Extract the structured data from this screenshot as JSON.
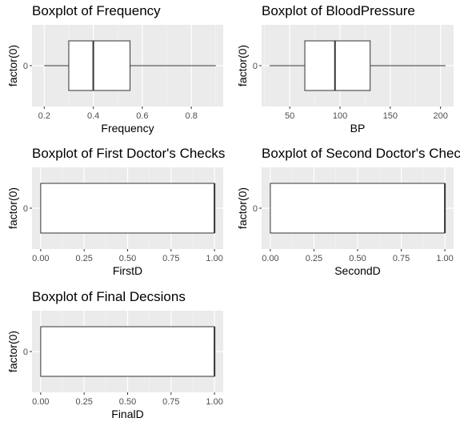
{
  "chart_data": [
    {
      "type": "boxplot",
      "title": "Boxplot of Frequency",
      "xlabel": "Frequency",
      "ylabel": "factor(0)",
      "category": "0",
      "xlim": [
        0.15,
        0.93
      ],
      "xticks": [
        0.2,
        0.4,
        0.6,
        0.8
      ],
      "xtick_labels": [
        "0.2",
        "0.4",
        "0.6",
        "0.8"
      ],
      "box": {
        "min": 0.2,
        "q1": 0.3,
        "median": 0.4,
        "q3": 0.55,
        "max": 0.9
      }
    },
    {
      "type": "boxplot",
      "title": "Boxplot of BloodPressure",
      "xlabel": "BP",
      "ylabel": "factor(0)",
      "category": "0",
      "xlim": [
        22,
        213
      ],
      "xticks": [
        50,
        100,
        150,
        200
      ],
      "xtick_labels": [
        "50",
        "100",
        "150",
        "200"
      ],
      "box": {
        "min": 30,
        "q1": 65,
        "median": 95,
        "q3": 130,
        "max": 205
      }
    },
    {
      "type": "boxplot",
      "title": "Boxplot of First Doctor's Checks",
      "xlabel": "FirstD",
      "ylabel": "factor(0)",
      "category": "0",
      "xlim": [
        -0.05,
        1.05
      ],
      "xticks": [
        0,
        0.25,
        0.5,
        0.75,
        1
      ],
      "xtick_labels": [
        "0.00",
        "0.25",
        "0.50",
        "0.75",
        "1.00"
      ],
      "box": {
        "min": 0,
        "q1": 0,
        "median": 1,
        "q3": 1,
        "max": 1
      }
    },
    {
      "type": "boxplot",
      "title": "Boxplot of Second Doctor's Checks",
      "xlabel": "SecondD",
      "ylabel": "factor(0)",
      "category": "0",
      "xlim": [
        -0.05,
        1.05
      ],
      "xticks": [
        0,
        0.25,
        0.5,
        0.75,
        1
      ],
      "xtick_labels": [
        "0.00",
        "0.25",
        "0.50",
        "0.75",
        "1.00"
      ],
      "box": {
        "min": 0,
        "q1": 0,
        "median": 1,
        "q3": 1,
        "max": 1
      }
    },
    {
      "type": "boxplot",
      "title": "Boxplot of Final Decsions",
      "xlabel": "FinalD",
      "ylabel": "factor(0)",
      "category": "0",
      "xlim": [
        -0.05,
        1.05
      ],
      "xticks": [
        0,
        0.25,
        0.5,
        0.75,
        1
      ],
      "xtick_labels": [
        "0.00",
        "0.25",
        "0.50",
        "0.75",
        "1.00"
      ],
      "box": {
        "min": 0,
        "q1": 0,
        "median": 1,
        "q3": 1,
        "max": 1
      }
    }
  ]
}
